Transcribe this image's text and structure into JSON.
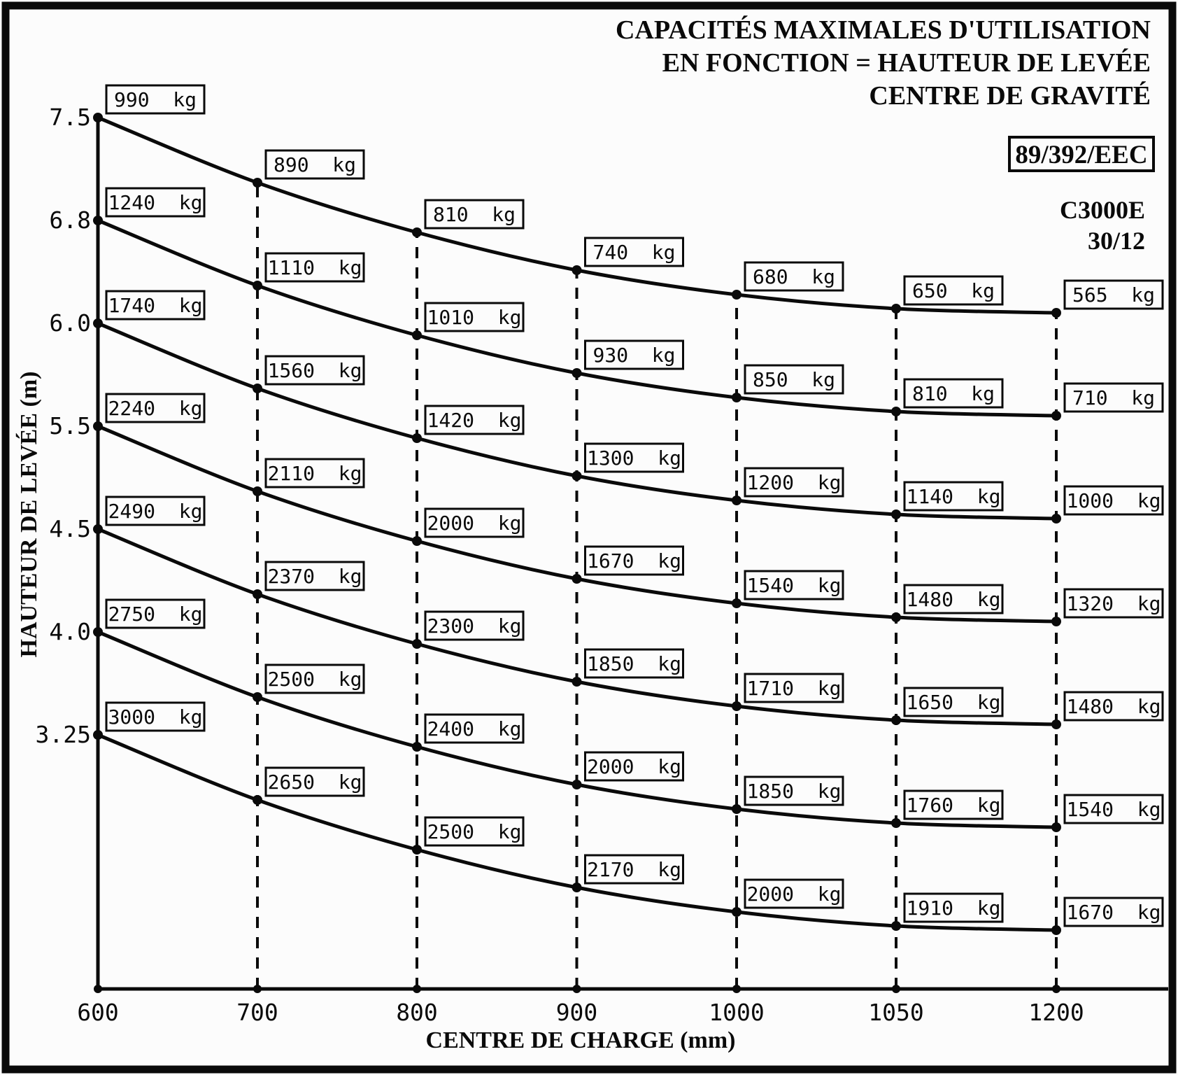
{
  "chart_data": {
    "type": "line",
    "title_lines": [
      "CAPACITÉS MAXIMALES D'UTILISATION",
      "EN FONCTION = HAUTEUR DE LEVÉE",
      "CENTRE DE GRAVITÉ"
    ],
    "badge": "89/392/EEC",
    "model": "C3000E",
    "model_variant": "30/12",
    "xlabel": "CENTRE DE CHARGE (mm)",
    "ylabel": "HAUTEUR DE LEVÉE (m)",
    "unit": "kg",
    "x_ticks": [
      600,
      700,
      800,
      900,
      1000,
      1050,
      1200
    ],
    "y_ticks": [
      "7.5",
      "6.8",
      "6.0",
      "5.5",
      "4.5",
      "4.0",
      "3.25"
    ],
    "legend_position": "none",
    "grid": "dashed-vertical-columns",
    "series": [
      {
        "height_m": "7.5",
        "capacities_kg": [
          990,
          890,
          810,
          740,
          680,
          650,
          565
        ]
      },
      {
        "height_m": "6.8",
        "capacities_kg": [
          1240,
          1110,
          1010,
          930,
          850,
          810,
          710
        ]
      },
      {
        "height_m": "6.0",
        "capacities_kg": [
          1740,
          1560,
          1420,
          1300,
          1200,
          1140,
          1000
        ]
      },
      {
        "height_m": "5.5",
        "capacities_kg": [
          2240,
          2110,
          2000,
          1670,
          1540,
          1480,
          1320
        ]
      },
      {
        "height_m": "4.5",
        "capacities_kg": [
          2490,
          2370,
          2300,
          1850,
          1710,
          1650,
          1480
        ]
      },
      {
        "height_m": "4.0",
        "capacities_kg": [
          2750,
          2500,
          2400,
          2000,
          1850,
          1760,
          1540
        ]
      },
      {
        "height_m": "3.25",
        "capacities_kg": [
          3000,
          2650,
          2500,
          2170,
          2000,
          1910,
          1670
        ]
      }
    ],
    "colors": {
      "ink": "#0a0a0a",
      "paper": "#fcfcfc"
    }
  }
}
